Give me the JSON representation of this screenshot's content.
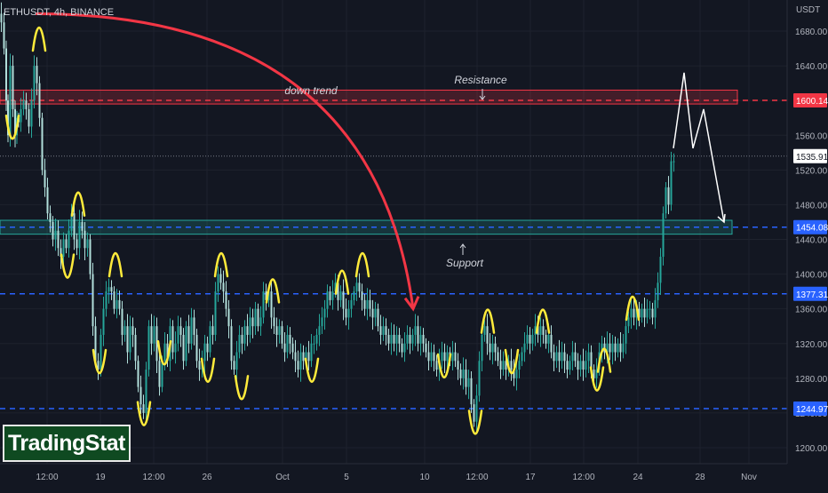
{
  "header": {
    "symbol": "ETHUSDT, 4h, BINANCE",
    "currency": "USDT"
  },
  "logo": {
    "text": "TradingStat"
  },
  "colors": {
    "background": "#131722",
    "grid": "#1e222d",
    "candle_up": "#26a69a",
    "candle_down": "#b2dfdb",
    "resistance": "#f23645",
    "support": "#2962ff",
    "support_zone": "#26a69a",
    "annotation": "#ffeb3b",
    "downtrend_arrow": "#f23645",
    "projection": "#ffffff"
  },
  "chart_data": {
    "type": "candlestick",
    "x_tick_labels": [
      "12:00",
      "19",
      "12:00",
      "26",
      "Oct",
      "5",
      "10",
      "12:00",
      "17",
      "12:00",
      "24",
      "28",
      "Nov"
    ],
    "y_tick_values": [
      1200,
      1240,
      1280,
      1320,
      1360,
      1400,
      1440,
      1480,
      1520,
      1560,
      1600,
      1640,
      1680
    ],
    "y_tick_labels": [
      "1200.00",
      "1240.00",
      "1280.00",
      "1320.00",
      "1360.00",
      "1400.00",
      "1440.00",
      "1480.00",
      "1520.00",
      "1560.00",
      "1600.00",
      "1640.00",
      "1680.00"
    ],
    "ylim": [
      1180,
      1720
    ],
    "price_levels": [
      {
        "name": "resistance",
        "value": 1600.14,
        "label": "1600.14",
        "style": "dashed",
        "color": "#f23645"
      },
      {
        "name": "support",
        "value": 1454.08,
        "label": "1454.08",
        "style": "dashed",
        "color": "#2962ff"
      },
      {
        "name": "mid-level",
        "value": 1377.31,
        "label": "1377.31",
        "style": "dashed",
        "color": "#2962ff"
      },
      {
        "name": "low-level",
        "value": 1244.97,
        "label": "1244.97",
        "style": "dashed",
        "color": "#2962ff"
      }
    ],
    "last_price": {
      "value": 1535.91,
      "label": "1535.91"
    },
    "zones": [
      {
        "name": "resistance-zone",
        "from": 1596,
        "to": 1612,
        "color": "#f23645"
      },
      {
        "name": "support-zone",
        "from": 1446,
        "to": 1462,
        "color": "#26a69a"
      }
    ],
    "annotations": [
      {
        "name": "resistance",
        "text": "Resistance"
      },
      {
        "name": "support",
        "text": "Support"
      },
      {
        "name": "down-trend",
        "text": "down trend"
      }
    ],
    "price_path": [
      [
        0,
        1700
      ],
      [
        3,
        1690
      ],
      [
        6,
        1660
      ],
      [
        8,
        1600
      ],
      [
        10,
        1560
      ],
      [
        13,
        1640
      ],
      [
        16,
        1590
      ],
      [
        18,
        1560
      ],
      [
        20,
        1580
      ],
      [
        22,
        1575
      ],
      [
        25,
        1590
      ],
      [
        28,
        1600
      ],
      [
        31,
        1590
      ],
      [
        34,
        1570
      ],
      [
        37,
        1600
      ],
      [
        40,
        1640
      ],
      [
        43,
        1620
      ],
      [
        46,
        1580
      ],
      [
        49,
        1520
      ],
      [
        52,
        1500
      ],
      [
        55,
        1470
      ],
      [
        58,
        1460
      ],
      [
        61,
        1440
      ],
      [
        64,
        1450
      ],
      [
        67,
        1430
      ],
      [
        70,
        1420
      ],
      [
        73,
        1440
      ],
      [
        76,
        1430
      ],
      [
        79,
        1450
      ],
      [
        82,
        1470
      ],
      [
        85,
        1440
      ],
      [
        88,
        1430
      ],
      [
        91,
        1460
      ],
      [
        94,
        1450
      ],
      [
        97,
        1430
      ],
      [
        100,
        1440
      ],
      [
        103,
        1400
      ],
      [
        106,
        1340
      ],
      [
        109,
        1300
      ],
      [
        112,
        1290
      ],
      [
        115,
        1330
      ],
      [
        118,
        1360
      ],
      [
        121,
        1380
      ],
      [
        124,
        1385
      ],
      [
        127,
        1380
      ],
      [
        130,
        1360
      ],
      [
        133,
        1370
      ],
      [
        136,
        1360
      ],
      [
        139,
        1330
      ],
      [
        142,
        1340
      ],
      [
        145,
        1310
      ],
      [
        148,
        1340
      ],
      [
        151,
        1330
      ],
      [
        154,
        1300
      ],
      [
        157,
        1270
      ],
      [
        160,
        1250
      ],
      [
        163,
        1240
      ],
      [
        166,
        1290
      ],
      [
        169,
        1340
      ],
      [
        172,
        1320
      ],
      [
        175,
        1340
      ],
      [
        178,
        1300
      ],
      [
        181,
        1270
      ],
      [
        184,
        1300
      ],
      [
        187,
        1320
      ],
      [
        190,
        1300
      ],
      [
        193,
        1340
      ],
      [
        196,
        1310
      ],
      [
        199,
        1320
      ],
      [
        202,
        1340
      ],
      [
        205,
        1330
      ],
      [
        208,
        1300
      ],
      [
        211,
        1340
      ],
      [
        214,
        1320
      ],
      [
        217,
        1350
      ],
      [
        220,
        1330
      ],
      [
        223,
        1300
      ],
      [
        226,
        1290
      ],
      [
        229,
        1300
      ],
      [
        232,
        1320
      ],
      [
        235,
        1310
      ],
      [
        238,
        1340
      ],
      [
        241,
        1330
      ],
      [
        244,
        1380
      ],
      [
        247,
        1400
      ],
      [
        250,
        1390
      ],
      [
        253,
        1380
      ],
      [
        256,
        1360
      ],
      [
        259,
        1340
      ],
      [
        262,
        1300
      ],
      [
        265,
        1290
      ],
      [
        268,
        1310
      ],
      [
        271,
        1330
      ],
      [
        274,
        1320
      ],
      [
        277,
        1340
      ],
      [
        280,
        1330
      ],
      [
        283,
        1350
      ],
      [
        286,
        1340
      ],
      [
        289,
        1360
      ],
      [
        292,
        1340
      ],
      [
        295,
        1350
      ],
      [
        298,
        1380
      ],
      [
        301,
        1370
      ],
      [
        304,
        1380
      ],
      [
        307,
        1350
      ],
      [
        310,
        1340
      ],
      [
        313,
        1330
      ],
      [
        316,
        1340
      ],
      [
        319,
        1320
      ],
      [
        322,
        1310
      ],
      [
        325,
        1330
      ],
      [
        328,
        1320
      ],
      [
        331,
        1310
      ],
      [
        334,
        1300
      ],
      [
        337,
        1290
      ],
      [
        340,
        1310
      ],
      [
        343,
        1300
      ],
      [
        346,
        1310
      ],
      [
        349,
        1300
      ],
      [
        352,
        1320
      ],
      [
        355,
        1320
      ],
      [
        358,
        1330
      ],
      [
        361,
        1340
      ],
      [
        364,
        1350
      ],
      [
        367,
        1360
      ],
      [
        370,
        1380
      ],
      [
        373,
        1370
      ],
      [
        376,
        1380
      ],
      [
        379,
        1390
      ],
      [
        382,
        1370
      ],
      [
        385,
        1380
      ],
      [
        388,
        1360
      ],
      [
        391,
        1350
      ],
      [
        394,
        1360
      ],
      [
        397,
        1370
      ],
      [
        400,
        1380
      ],
      [
        403,
        1390
      ],
      [
        406,
        1380
      ],
      [
        409,
        1370
      ],
      [
        412,
        1360
      ],
      [
        415,
        1370
      ],
      [
        418,
        1360
      ],
      [
        421,
        1350
      ],
      [
        424,
        1360
      ],
      [
        427,
        1340
      ],
      [
        430,
        1330
      ],
      [
        433,
        1340
      ],
      [
        436,
        1330
      ],
      [
        439,
        1320
      ],
      [
        442,
        1330
      ],
      [
        445,
        1320
      ],
      [
        448,
        1330
      ],
      [
        451,
        1320
      ],
      [
        454,
        1310
      ],
      [
        457,
        1320
      ],
      [
        460,
        1330
      ],
      [
        463,
        1320
      ],
      [
        466,
        1330
      ],
      [
        469,
        1340
      ],
      [
        472,
        1320
      ],
      [
        475,
        1330
      ],
      [
        478,
        1320
      ],
      [
        481,
        1310
      ],
      [
        484,
        1300
      ],
      [
        487,
        1310
      ],
      [
        490,
        1300
      ],
      [
        493,
        1290
      ],
      [
        496,
        1300
      ],
      [
        499,
        1310
      ],
      [
        502,
        1300
      ],
      [
        505,
        1310
      ],
      [
        508,
        1300
      ],
      [
        511,
        1310
      ],
      [
        514,
        1300
      ],
      [
        517,
        1290
      ],
      [
        520,
        1280
      ],
      [
        523,
        1290
      ],
      [
        526,
        1270
      ],
      [
        529,
        1280
      ],
      [
        532,
        1250
      ],
      [
        535,
        1230
      ],
      [
        538,
        1260
      ],
      [
        541,
        1300
      ],
      [
        544,
        1330
      ],
      [
        547,
        1340
      ],
      [
        550,
        1320
      ],
      [
        553,
        1310
      ],
      [
        556,
        1320
      ],
      [
        559,
        1310
      ],
      [
        562,
        1300
      ],
      [
        565,
        1290
      ],
      [
        568,
        1300
      ],
      [
        571,
        1290
      ],
      [
        574,
        1300
      ],
      [
        577,
        1290
      ],
      [
        580,
        1280
      ],
      [
        583,
        1290
      ],
      [
        586,
        1300
      ],
      [
        589,
        1310
      ],
      [
        592,
        1320
      ],
      [
        595,
        1330
      ],
      [
        598,
        1320
      ],
      [
        601,
        1330
      ],
      [
        604,
        1340
      ],
      [
        607,
        1330
      ],
      [
        610,
        1340
      ],
      [
        613,
        1330
      ],
      [
        616,
        1320
      ],
      [
        619,
        1330
      ],
      [
        622,
        1310
      ],
      [
        625,
        1300
      ],
      [
        628,
        1310
      ],
      [
        631,
        1300
      ],
      [
        634,
        1310
      ],
      [
        637,
        1300
      ],
      [
        640,
        1290
      ],
      [
        643,
        1300
      ],
      [
        646,
        1310
      ],
      [
        649,
        1300
      ],
      [
        652,
        1290
      ],
      [
        655,
        1300
      ],
      [
        658,
        1290
      ],
      [
        661,
        1300
      ],
      [
        664,
        1310
      ],
      [
        667,
        1290
      ],
      [
        670,
        1280
      ],
      [
        673,
        1290
      ],
      [
        676,
        1310
      ],
      [
        679,
        1320
      ],
      [
        682,
        1310
      ],
      [
        685,
        1320
      ],
      [
        688,
        1310
      ],
      [
        691,
        1320
      ],
      [
        694,
        1310
      ],
      [
        697,
        1320
      ],
      [
        700,
        1310
      ],
      [
        703,
        1320
      ],
      [
        706,
        1340
      ],
      [
        709,
        1350
      ],
      [
        712,
        1360
      ],
      [
        715,
        1350
      ],
      [
        718,
        1360
      ],
      [
        721,
        1350
      ],
      [
        724,
        1360
      ],
      [
        727,
        1350
      ],
      [
        730,
        1360
      ],
      [
        733,
        1360
      ],
      [
        736,
        1350
      ],
      [
        739,
        1370
      ],
      [
        742,
        1390
      ],
      [
        745,
        1420
      ],
      [
        748,
        1470
      ],
      [
        751,
        1500
      ],
      [
        754,
        1480
      ],
      [
        757,
        1530
      ],
      [
        760,
        1530
      ]
    ],
    "projection_path": [
      [
        758,
        1545
      ],
      [
        770,
        1632
      ],
      [
        780,
        1545
      ],
      [
        792,
        1590
      ],
      [
        815,
        1460
      ]
    ],
    "downtrend_curve": {
      "from": [
        40,
        1700
      ],
      "control": [
        420,
        1700
      ],
      "to": [
        465,
        1360
      ]
    }
  }
}
